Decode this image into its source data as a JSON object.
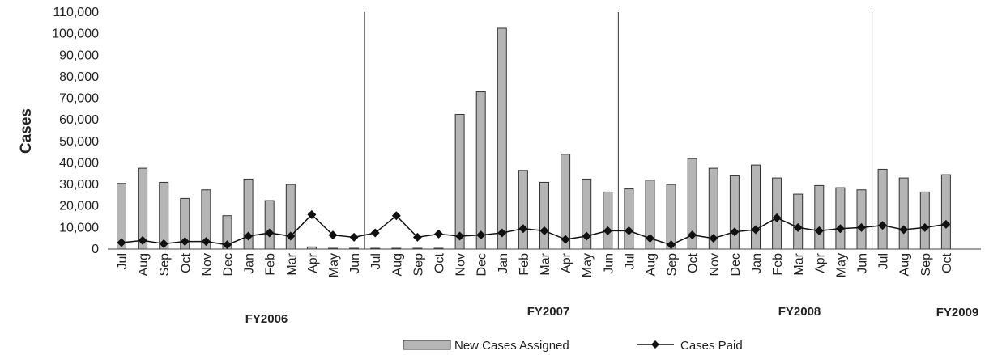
{
  "chart_data": {
    "type": "bar",
    "ylabel": "Cases",
    "ylim": [
      0,
      110000
    ],
    "yticks": [
      0,
      10000,
      20000,
      30000,
      40000,
      50000,
      60000,
      70000,
      80000,
      90000,
      100000,
      110000
    ],
    "ytick_labels": [
      "0",
      "10,000",
      "20,000",
      "30,000",
      "40,000",
      "50,000",
      "60,000",
      "70,000",
      "80,000",
      "90,000",
      "100,000",
      "110,000"
    ],
    "categories": [
      "Jul",
      "Aug",
      "Sep",
      "Oct",
      "Nov",
      "Dec",
      "Jan",
      "Feb",
      "Mar",
      "Apr",
      "May",
      "Jun",
      "Jul",
      "Aug",
      "Sep",
      "Oct",
      "Nov",
      "Dec",
      "Jan",
      "Feb",
      "Mar",
      "Apr",
      "May",
      "Jun",
      "Jul",
      "Aug",
      "Sep",
      "Oct",
      "Nov",
      "Dec",
      "Jan",
      "Feb",
      "Mar",
      "Apr",
      "May",
      "Jun",
      "Jul",
      "Aug",
      "Sep",
      "Oct"
    ],
    "fiscal_years": [
      {
        "label": "FY2006",
        "start": 0,
        "end": 11
      },
      {
        "label": "FY2007",
        "start": 12,
        "end": 23
      },
      {
        "label": "FY2008",
        "start": 24,
        "end": 35
      },
      {
        "label": "FY2009",
        "start": 36,
        "end": 39
      }
    ],
    "series": [
      {
        "name": "New Cases Assigned",
        "kind": "bar",
        "color": "#b5b5b5",
        "values": [
          30500,
          37500,
          31000,
          23500,
          27500,
          15500,
          32500,
          22500,
          30000,
          1000,
          200,
          200,
          200,
          200,
          200,
          200,
          62500,
          73000,
          102500,
          36500,
          31000,
          44000,
          32500,
          26500,
          28000,
          32000,
          30000,
          42000,
          37500,
          34000,
          39000,
          33000,
          25500,
          29500,
          28500,
          27500,
          37000,
          33000,
          26500,
          34500
        ]
      },
      {
        "name": "Cases Paid",
        "kind": "line",
        "color": "#111111",
        "values": [
          3000,
          4000,
          2500,
          3500,
          3500,
          2000,
          6000,
          7500,
          6000,
          16000,
          6500,
          5500,
          7500,
          15500,
          5500,
          7000,
          6000,
          6500,
          7500,
          9500,
          8500,
          4500,
          6000,
          8500,
          8500,
          5000,
          2000,
          6500,
          5000,
          8000,
          9000,
          14500,
          10000,
          8500,
          9500,
          10000,
          11000,
          9000,
          10000,
          11500
        ]
      }
    ],
    "legend_position": "bottom",
    "grid": false
  }
}
